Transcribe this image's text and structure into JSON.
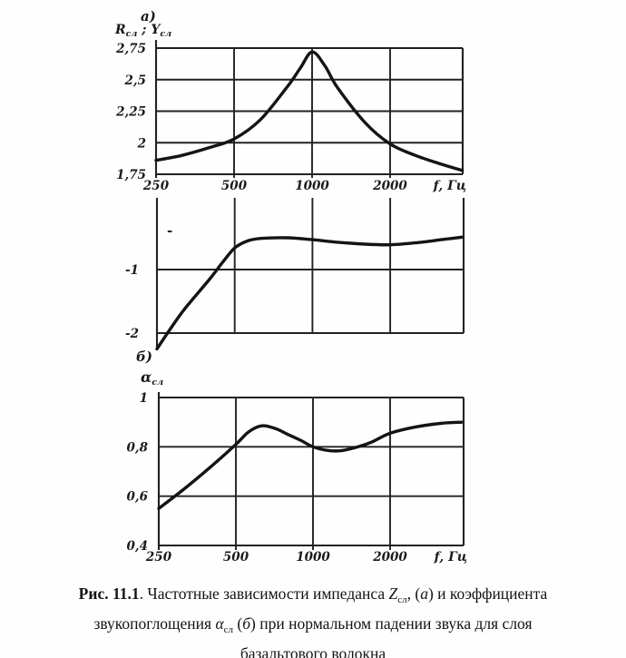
{
  "figure": {
    "part_a_label": "а)",
    "part_b_label": "б)",
    "dash_mark": "-",
    "ylabel_a": {
      "p1": "R",
      "s1": "сл",
      "sep": " ; ",
      "p2": "Y",
      "s2": "сл"
    },
    "ylabel_b": {
      "p1": "α",
      "s1": "сл"
    }
  },
  "caption": {
    "prefix": "Рис. 11.1",
    "l1a": ". Частотные зависимости импеданса ",
    "l1_sym": "Z",
    "l1_sub": "сл",
    "l1b": ", (",
    "l1_it": "а",
    "l1c": ") и коэффициента",
    "l2a": "звукопоглощения ",
    "l2_sym": "α",
    "l2_sub": "сл",
    "l2b": " (",
    "l2_it": "б",
    "l2c": ") при нормальном падении звука для слоя",
    "l3": "базальтового волокна"
  },
  "chart_data": [
    {
      "type": "line",
      "name": "impedance-real-part",
      "panel": "а",
      "ylabel": "Rсл ; Yсл",
      "x_axis_label": "f, Гц",
      "x_scale": "log2-octaves",
      "x_range_hz": [
        250,
        3800
      ],
      "grid_hz": [
        500,
        1000,
        2000
      ],
      "x_ticks": [
        {
          "f": 250,
          "label": "250"
        },
        {
          "f": 500,
          "label": "500"
        },
        {
          "f": 1000,
          "label": "1000"
        },
        {
          "f": 2000,
          "label": "2000"
        }
      ],
      "y_range": [
        1.75,
        2.75
      ],
      "y_ticks": [
        {
          "v": 2.75,
          "label": "2,75"
        },
        {
          "v": 2.5,
          "label": "2,5"
        },
        {
          "v": 2.25,
          "label": "2,25"
        },
        {
          "v": 2,
          "label": "2"
        },
        {
          "v": 1.75,
          "label": "1,75"
        }
      ],
      "points": [
        [
          250,
          1.86
        ],
        [
          315,
          1.9
        ],
        [
          400,
          1.96
        ],
        [
          500,
          2.03
        ],
        [
          630,
          2.18
        ],
        [
          800,
          2.44
        ],
        [
          900,
          2.59
        ],
        [
          1000,
          2.72
        ],
        [
          1120,
          2.61
        ],
        [
          1250,
          2.44
        ],
        [
          1600,
          2.16
        ],
        [
          2000,
          1.99
        ],
        [
          2500,
          1.9
        ],
        [
          3150,
          1.83
        ],
        [
          3800,
          1.78
        ]
      ]
    },
    {
      "type": "line",
      "name": "impedance-imaginary-part",
      "panel": "а",
      "x_scale": "log2-octaves",
      "x_range_hz": [
        250,
        3800
      ],
      "grid_hz": [
        500,
        1000,
        2000
      ],
      "x_ticks": [],
      "y_range": [
        -2.3,
        0
      ],
      "y_ticks": [
        {
          "v": -1,
          "label": "-1"
        },
        {
          "v": -2,
          "label": "-2"
        }
      ],
      "points": [
        [
          250,
          -2.25
        ],
        [
          280,
          -1.95
        ],
        [
          320,
          -1.62
        ],
        [
          400,
          -1.15
        ],
        [
          450,
          -0.88
        ],
        [
          500,
          -0.66
        ],
        [
          560,
          -0.55
        ],
        [
          630,
          -0.51
        ],
        [
          800,
          -0.5
        ],
        [
          1000,
          -0.53
        ],
        [
          1250,
          -0.57
        ],
        [
          1600,
          -0.6
        ],
        [
          2000,
          -0.61
        ],
        [
          2500,
          -0.58
        ],
        [
          3150,
          -0.53
        ],
        [
          3800,
          -0.49
        ]
      ]
    },
    {
      "type": "line",
      "name": "absorption-coefficient",
      "panel": "б",
      "ylabel": "αсл",
      "x_axis_label": "f, Гц",
      "x_scale": "log2-octaves",
      "x_range_hz": [
        250,
        3800
      ],
      "grid_hz": [
        500,
        1000,
        2000
      ],
      "x_ticks": [
        {
          "f": 250,
          "label": "250"
        },
        {
          "f": 500,
          "label": "500"
        },
        {
          "f": 1000,
          "label": "1000"
        },
        {
          "f": 2000,
          "label": "2000"
        }
      ],
      "y_range": [
        0.4,
        1
      ],
      "y_ticks": [
        {
          "v": 1,
          "label": "1"
        },
        {
          "v": 0.8,
          "label": "0,8"
        },
        {
          "v": 0.6,
          "label": "0,6"
        },
        {
          "v": 0.4,
          "label": "0,4"
        }
      ],
      "points": [
        [
          250,
          0.55
        ],
        [
          315,
          0.63
        ],
        [
          400,
          0.72
        ],
        [
          500,
          0.81
        ],
        [
          560,
          0.86
        ],
        [
          630,
          0.885
        ],
        [
          710,
          0.875
        ],
        [
          800,
          0.85
        ],
        [
          900,
          0.825
        ],
        [
          1000,
          0.8
        ],
        [
          1150,
          0.785
        ],
        [
          1300,
          0.785
        ],
        [
          1500,
          0.8
        ],
        [
          1700,
          0.82
        ],
        [
          2000,
          0.855
        ],
        [
          2500,
          0.88
        ],
        [
          3150,
          0.895
        ],
        [
          3800,
          0.9
        ]
      ]
    }
  ]
}
